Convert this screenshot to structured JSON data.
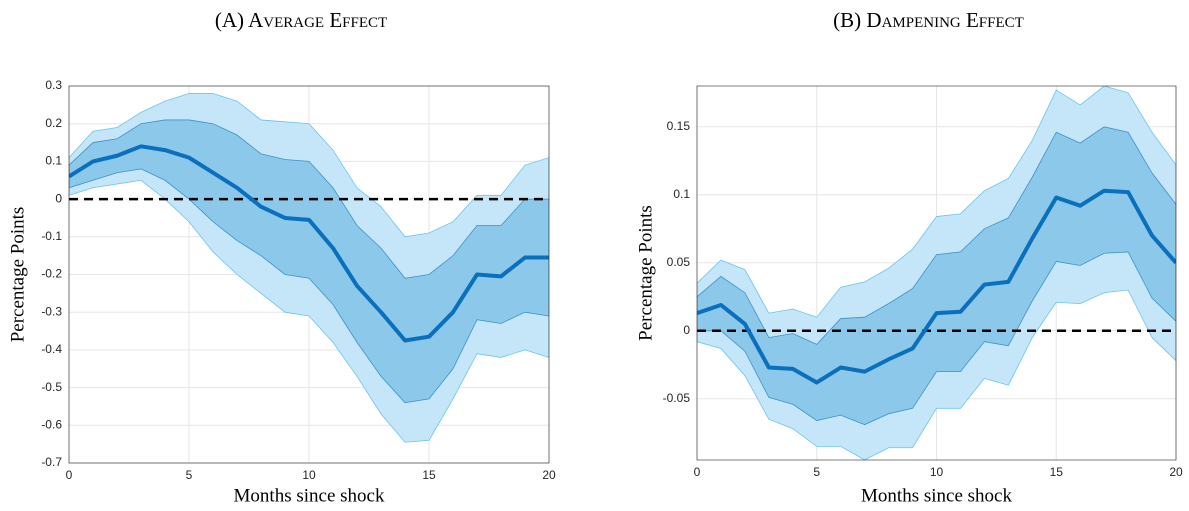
{
  "chart_data": [
    {
      "type": "line",
      "title": "(A) Average Effect",
      "xlabel": "Months since shock",
      "ylabel": "Percentage Points",
      "x": [
        0,
        1,
        2,
        3,
        4,
        5,
        6,
        7,
        8,
        9,
        10,
        11,
        12,
        13,
        14,
        15,
        16,
        17,
        18,
        19,
        20
      ],
      "xlim": [
        0,
        20
      ],
      "xticks": [
        0,
        5,
        10,
        15,
        20
      ],
      "ylim": [
        -0.7,
        0.3
      ],
      "yticks": [
        -0.7,
        -0.6,
        -0.5,
        -0.4,
        -0.3,
        -0.2,
        -0.1,
        0,
        0.1,
        0.2,
        0.3
      ],
      "grid": true,
      "hline": 0,
      "bands": [
        {
          "color": "#c4e6f8",
          "edge": "#6cc3ec",
          "upper": [
            0.11,
            0.18,
            0.19,
            0.23,
            0.26,
            0.28,
            0.28,
            0.26,
            0.21,
            0.205,
            0.2,
            0.13,
            0.03,
            -0.02,
            -0.1,
            -0.09,
            -0.06,
            0.01,
            0.01,
            0.09,
            0.11
          ],
          "lower": [
            0.01,
            0.03,
            0.04,
            0.05,
            0.0,
            -0.06,
            -0.14,
            -0.2,
            -0.25,
            -0.3,
            -0.31,
            -0.38,
            -0.47,
            -0.57,
            -0.645,
            -0.64,
            -0.53,
            -0.41,
            -0.42,
            -0.4,
            -0.42
          ]
        },
        {
          "color": "#8cc8ea",
          "edge": "#3d91c9",
          "upper": [
            0.09,
            0.15,
            0.16,
            0.2,
            0.21,
            0.21,
            0.2,
            0.17,
            0.12,
            0.105,
            0.1,
            0.03,
            -0.07,
            -0.13,
            -0.21,
            -0.2,
            -0.15,
            -0.07,
            -0.07,
            0.0,
            0.0
          ],
          "lower": [
            0.03,
            0.05,
            0.07,
            0.08,
            0.05,
            0.0,
            -0.06,
            -0.11,
            -0.15,
            -0.2,
            -0.21,
            -0.28,
            -0.38,
            -0.47,
            -0.54,
            -0.53,
            -0.45,
            -0.32,
            -0.33,
            -0.3,
            -0.31
          ]
        }
      ],
      "series": [
        {
          "color": "#0a6fbd",
          "values": [
            0.06,
            0.1,
            0.115,
            0.14,
            0.13,
            0.11,
            0.07,
            0.03,
            -0.02,
            -0.05,
            -0.055,
            -0.13,
            -0.23,
            -0.3,
            -0.375,
            -0.365,
            -0.3,
            -0.2,
            -0.205,
            -0.155,
            -0.155
          ]
        }
      ]
    },
    {
      "type": "line",
      "title": "(B) Dampening Effect",
      "xlabel": "Months since shock",
      "ylabel": "Percentage Points",
      "x": [
        0,
        1,
        2,
        3,
        4,
        5,
        6,
        7,
        8,
        9,
        10,
        11,
        12,
        13,
        14,
        15,
        16,
        17,
        18,
        19,
        20
      ],
      "xlim": [
        0,
        20
      ],
      "xticks": [
        0,
        5,
        10,
        15,
        20
      ],
      "ylim": [
        -0.095,
        0.18
      ],
      "yticks": [
        -0.05,
        0,
        0.05,
        0.1,
        0.15
      ],
      "grid": true,
      "hline": 0,
      "bands": [
        {
          "color": "#c4e6f8",
          "edge": "#6cc3ec",
          "upper": [
            0.035,
            0.052,
            0.045,
            0.013,
            0.016,
            0.01,
            0.032,
            0.036,
            0.046,
            0.06,
            0.084,
            0.086,
            0.103,
            0.112,
            0.14,
            0.177,
            0.166,
            0.18,
            0.175,
            0.146,
            0.122
          ],
          "lower": [
            -0.008,
            -0.013,
            -0.033,
            -0.065,
            -0.072,
            -0.085,
            -0.085,
            -0.095,
            -0.086,
            -0.086,
            -0.057,
            -0.057,
            -0.035,
            -0.04,
            -0.005,
            0.021,
            0.02,
            0.028,
            0.03,
            -0.005,
            -0.022
          ]
        },
        {
          "color": "#8cc8ea",
          "edge": "#3d91c9",
          "upper": [
            0.025,
            0.04,
            0.028,
            -0.005,
            -0.002,
            -0.01,
            0.009,
            0.01,
            0.02,
            0.031,
            0.056,
            0.058,
            0.075,
            0.083,
            0.113,
            0.146,
            0.138,
            0.15,
            0.146,
            0.116,
            0.093
          ],
          "lower": [
            0.0,
            0.0,
            -0.015,
            -0.049,
            -0.054,
            -0.066,
            -0.062,
            -0.069,
            -0.061,
            -0.057,
            -0.03,
            -0.03,
            -0.008,
            -0.011,
            0.022,
            0.051,
            0.048,
            0.057,
            0.058,
            0.024,
            0.007
          ]
        }
      ],
      "series": [
        {
          "color": "#0a6fbd",
          "values": [
            0.013,
            0.019,
            0.005,
            -0.027,
            -0.028,
            -0.038,
            -0.027,
            -0.03,
            -0.021,
            -0.013,
            0.013,
            0.014,
            0.034,
            0.036,
            0.068,
            0.098,
            0.092,
            0.103,
            0.102,
            0.07,
            0.05
          ]
        }
      ]
    }
  ]
}
